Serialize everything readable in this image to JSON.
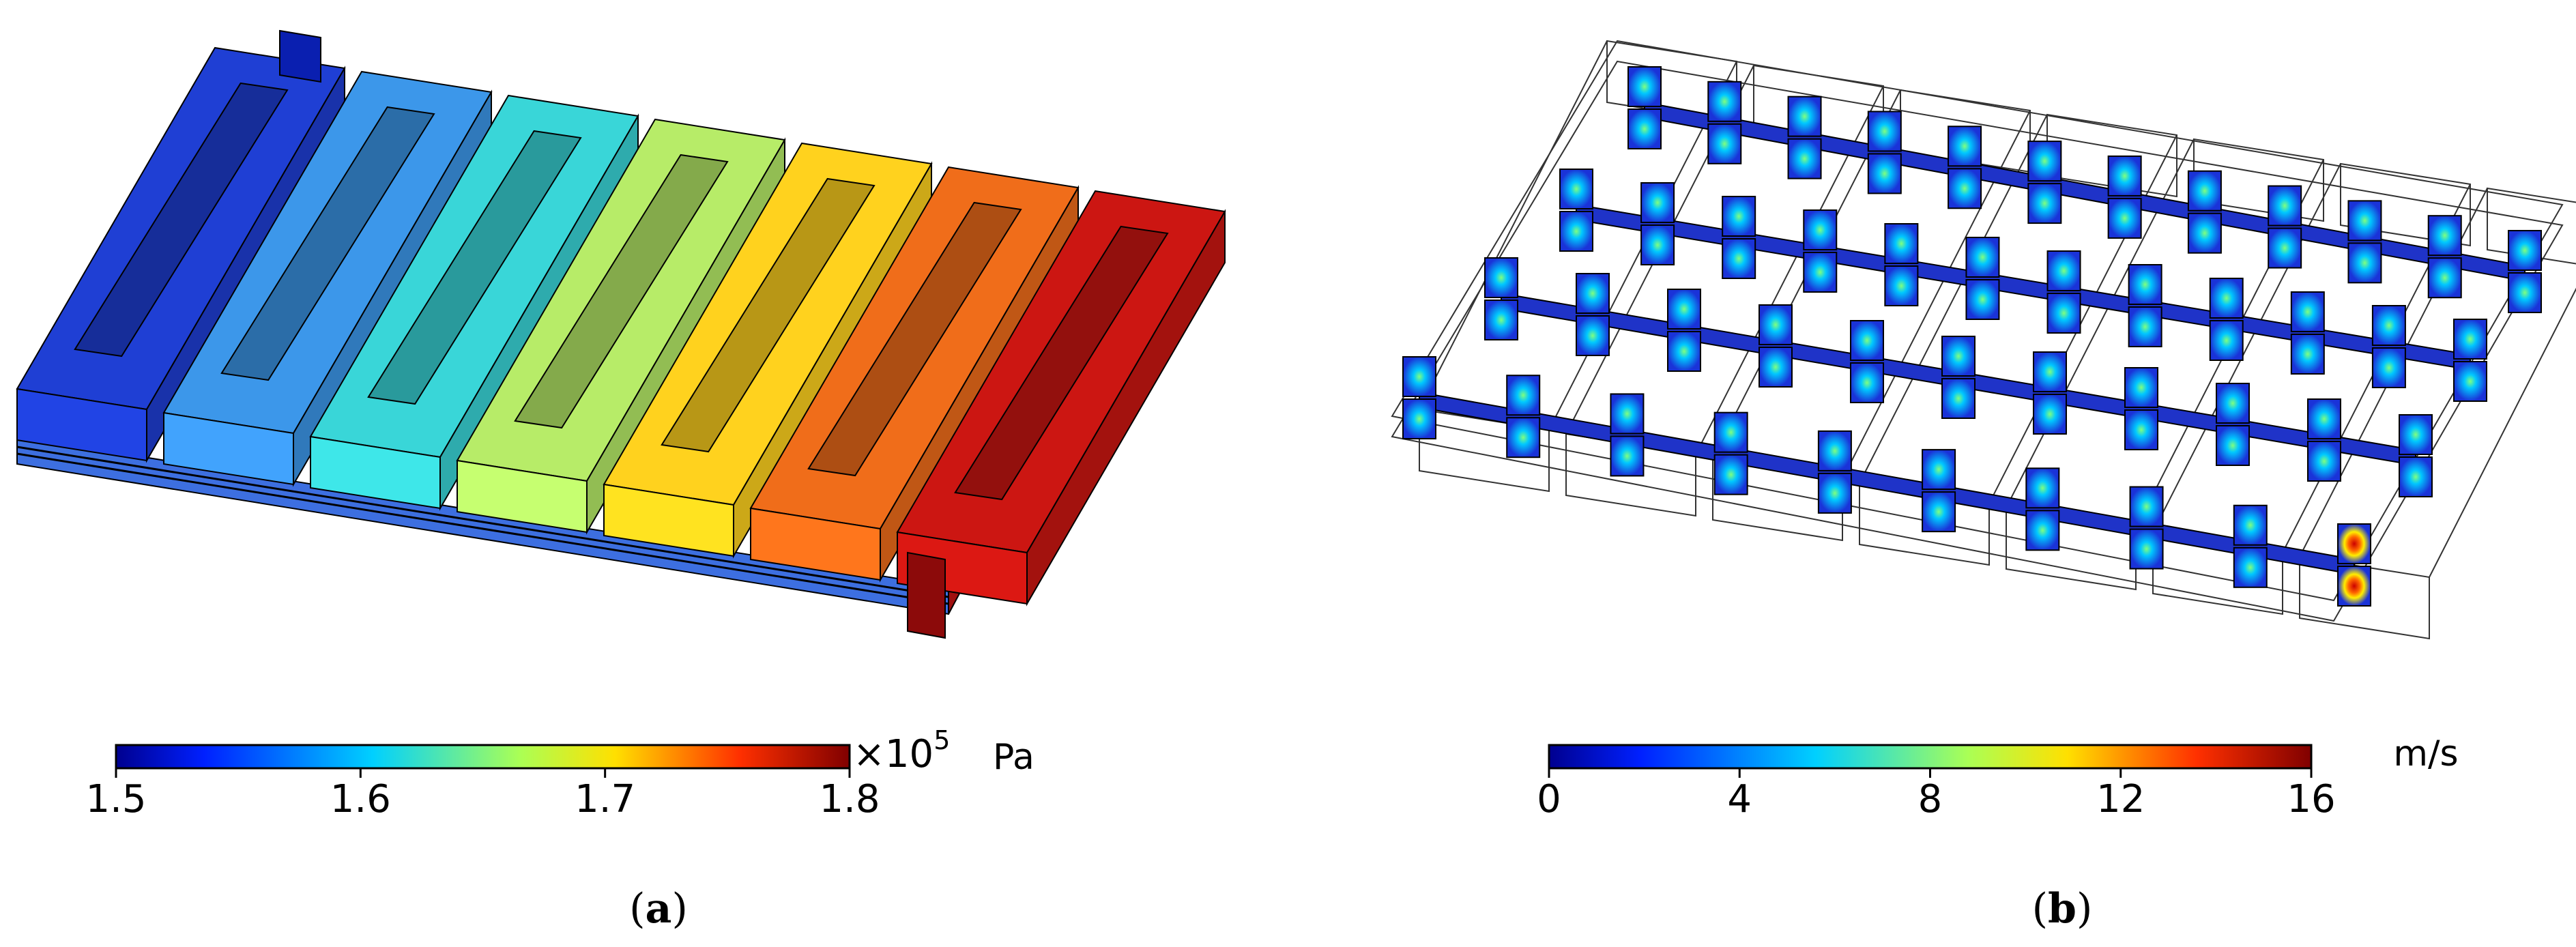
{
  "panel_a": {
    "caption_open": "(",
    "caption_letter": "a",
    "caption_close": ")",
    "colorbar": {
      "ticks": [
        "1.5",
        "1.6",
        "1.7",
        "1.8"
      ],
      "tick_values": [
        1.5,
        1.6,
        1.7,
        1.8
      ],
      "range": [
        1.5,
        1.8
      ],
      "multiplier": "×10",
      "exponent": "5",
      "unit": "Pa",
      "colormap": "rainbow"
    },
    "channel_colors": [
      "#1f3fd4",
      "#3c97ea",
      "#39d6d8",
      "#b7ec68",
      "#ffd21e",
      "#f06d1a",
      "#cc1612"
    ]
  },
  "panel_b": {
    "caption_open": "(",
    "caption_letter": "b",
    "caption_close": ")",
    "colorbar": {
      "ticks": [
        "0",
        "4",
        "8",
        "12",
        "16"
      ],
      "tick_values": [
        0,
        4,
        8,
        12,
        16
      ],
      "range": [
        0,
        16
      ],
      "unit": "m/s",
      "colormap": "rainbow"
    }
  }
}
